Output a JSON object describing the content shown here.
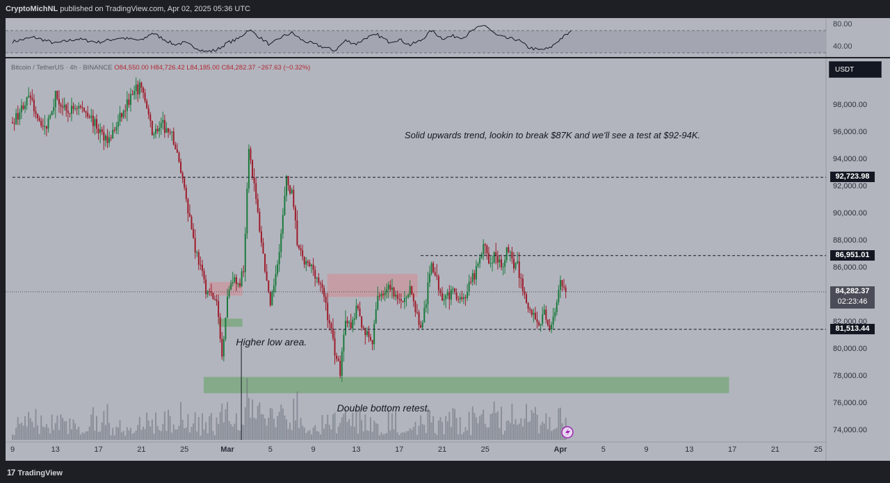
{
  "header": {
    "publisher": "CryptoMichNL",
    "published_text": "published on TradingView.com, Apr 02, 2025 05:36 UTC"
  },
  "legend": {
    "symbol": "Bitcoin / TetherUS · 4h · BINANCE",
    "open": "O84,550.00",
    "high": "H84,726.42",
    "low": "L84,185.00",
    "close": "C84,282.37",
    "change": "−267.63 (−0.32%)"
  },
  "currency_button": "USDT",
  "footer": {
    "brand": "TradingView",
    "logo_mark": "17"
  },
  "colors": {
    "up": "#1b7a3c",
    "down": "#9e1b2a",
    "pane": "#b2b5be",
    "demand_zone": "#7fa884",
    "supply_zone": "#c79aa2"
  },
  "chart_data": {
    "type": "candlestick",
    "title": "Bitcoin / TetherUS · 4h · BINANCE",
    "ylim": [
      73200,
      101500
    ],
    "y_ticks": [
      "98,000.00",
      "96,000.00",
      "94,000.00",
      "92,000.00",
      "90,000.00",
      "88,000.00",
      "86,000.00",
      "84,000.00",
      "82,000.00",
      "80,000.00",
      "78,000.00",
      "76,000.00",
      "74,000.00"
    ],
    "y_tick_values": [
      98000,
      96000,
      94000,
      92000,
      90000,
      88000,
      86000,
      84000,
      82000,
      80000,
      78000,
      76000,
      74000
    ],
    "x_ticks": [
      {
        "label": "9",
        "day": 0
      },
      {
        "label": "13",
        "day": 4
      },
      {
        "label": "17",
        "day": 8
      },
      {
        "label": "21",
        "day": 12
      },
      {
        "label": "25",
        "day": 16
      },
      {
        "label": "Mar",
        "day": 20,
        "bold": true
      },
      {
        "label": "5",
        "day": 24
      },
      {
        "label": "9",
        "day": 28
      },
      {
        "label": "13",
        "day": 32
      },
      {
        "label": "17",
        "day": 36
      },
      {
        "label": "21",
        "day": 40
      },
      {
        "label": "25",
        "day": 44
      },
      {
        "label": "Apr",
        "day": 51,
        "bold": true
      },
      {
        "label": "5",
        "day": 55
      },
      {
        "label": "9",
        "day": 59
      },
      {
        "label": "13",
        "day": 63
      },
      {
        "label": "17",
        "day": 67
      },
      {
        "label": "21",
        "day": 71
      },
      {
        "label": "25",
        "day": 75
      }
    ],
    "price_path_days": [
      0,
      1.5,
      3,
      4,
      5,
      6,
      7,
      8,
      9,
      10,
      11,
      12,
      13,
      14,
      15,
      16,
      17,
      18,
      19,
      19.5,
      20,
      20.5,
      21,
      21.5,
      22,
      23,
      24,
      25,
      25.5,
      26,
      26.5,
      27,
      28,
      29,
      30,
      30.5,
      31,
      31.5,
      32,
      33,
      33.5,
      34,
      35,
      36,
      37,
      38,
      38.5,
      39,
      39.5,
      40,
      41,
      42,
      43,
      44,
      44.5,
      45,
      45.5,
      46,
      47,
      47.5,
      48,
      49,
      49.5,
      50,
      50.5,
      51,
      51.5
    ],
    "price_path_values": [
      96800,
      98600,
      96200,
      98800,
      97400,
      98000,
      97500,
      96200,
      95500,
      97000,
      98600,
      99500,
      96000,
      96500,
      95500,
      92000,
      87500,
      84500,
      83500,
      79500,
      84000,
      85500,
      84500,
      86000,
      95000,
      89000,
      83000,
      88500,
      92500,
      91500,
      88000,
      86500,
      86000,
      84000,
      80000,
      78500,
      82500,
      81500,
      83000,
      81000,
      80500,
      84000,
      84500,
      83500,
      84500,
      81500,
      83500,
      86500,
      85000,
      84000,
      84200,
      83800,
      85500,
      87800,
      86200,
      87200,
      86000,
      87400,
      86000,
      84500,
      83000,
      82000,
      82500,
      81700,
      82500,
      84800,
      84200
    ],
    "horizontal_levels": [
      {
        "label": "92,723.98",
        "value": 92723.98,
        "day_start": 0
      },
      {
        "label": "86,951.01",
        "value": 86951.01,
        "day_start": 38
      },
      {
        "label": "81,513.44",
        "value": 81513.44,
        "day_start": 24
      }
    ],
    "last_price": {
      "label": "84,282.37",
      "value": 84282.37,
      "countdown": "02:23:46"
    },
    "zones": [
      {
        "kind": "supply",
        "day_start": 18.3,
        "day_end": 21.4,
        "low": 84000,
        "high": 85000
      },
      {
        "kind": "supply",
        "day_start": 29.3,
        "day_end": 37.7,
        "low": 83900,
        "high": 85600
      },
      {
        "kind": "demand",
        "day_start": 19.2,
        "day_end": 21.4,
        "low": 81700,
        "high": 82300
      },
      {
        "kind": "demand",
        "day_start": 17.8,
        "day_end": 66.7,
        "low": 76800,
        "high": 78000
      }
    ],
    "annotations": [
      {
        "name": "trend-note",
        "text": "Solid upwards trend, lookin to break $87K and we'll see a test at $92-94K.",
        "day": 36.5,
        "value": 95800
      },
      {
        "name": "higher-low-note",
        "text": "Higher low area.",
        "day": 20.8,
        "value": 80600
      },
      {
        "name": "double-bottom-note",
        "text": "Double bottom retest.",
        "day": 30.2,
        "value": 75700
      }
    ],
    "rsi": {
      "ticks": [
        "80.00",
        "40.00"
      ],
      "tick_values": [
        80,
        40
      ],
      "band": [
        30,
        70
      ],
      "ylim": [
        25,
        90
      ],
      "path_days": [
        0,
        2,
        4,
        6,
        8,
        10,
        12,
        13,
        15,
        16,
        17,
        18,
        19,
        20,
        21,
        22,
        23,
        24,
        25,
        26,
        27,
        28,
        29,
        30,
        31,
        32,
        33,
        34,
        35,
        36,
        37,
        38,
        39,
        40,
        41,
        42,
        43,
        44,
        45,
        46,
        47,
        48,
        49,
        50,
        51,
        52
      ],
      "path_values": [
        50,
        58,
        47,
        55,
        49,
        57,
        52,
        66,
        45,
        48,
        40,
        32,
        35,
        48,
        55,
        72,
        58,
        44,
        58,
        66,
        52,
        46,
        40,
        34,
        52,
        46,
        58,
        62,
        50,
        54,
        44,
        52,
        70,
        56,
        60,
        58,
        72,
        80,
        62,
        56,
        54,
        40,
        35,
        38,
        55,
        68
      ]
    }
  }
}
